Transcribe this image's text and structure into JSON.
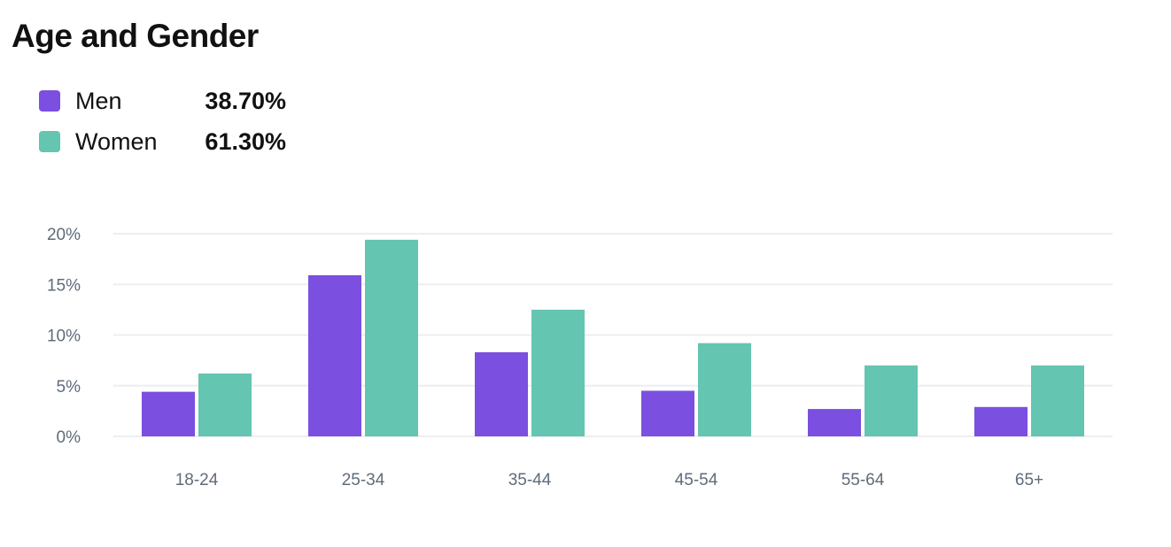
{
  "title": "Age and Gender",
  "legend": [
    {
      "label": "Men",
      "value": "38.70%",
      "color": "#7b4fe0"
    },
    {
      "label": "Women",
      "value": "61.30%",
      "color": "#64c5b1"
    }
  ],
  "chart_data": {
    "type": "bar",
    "title": "Age and Gender",
    "categories": [
      "18-24",
      "25-34",
      "35-44",
      "45-54",
      "55-64",
      "65+"
    ],
    "series": [
      {
        "name": "Men",
        "color": "#7b4fe0",
        "values": [
          4.4,
          15.9,
          8.3,
          4.5,
          2.7,
          2.9
        ]
      },
      {
        "name": "Women",
        "color": "#64c5b1",
        "values": [
          6.2,
          19.4,
          12.5,
          9.2,
          7.0,
          7.0
        ]
      }
    ],
    "yticks": [
      "0%",
      "5%",
      "10%",
      "15%",
      "20%"
    ],
    "ylim": [
      0,
      20
    ],
    "grid": true,
    "legend_position": "top-left",
    "xlabel": "",
    "ylabel": ""
  }
}
